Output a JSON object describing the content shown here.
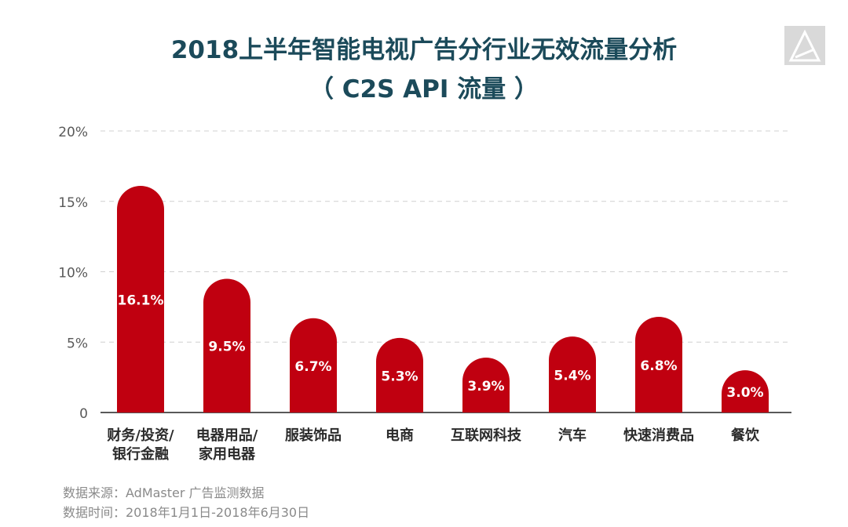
{
  "chart_data": {
    "type": "bar",
    "title": "2018上半年智能电视广告分行业无效流量分析",
    "subtitle": "（ C2S API 流量 ）",
    "categories": [
      [
        "财务/投资/",
        "银行金融"
      ],
      [
        "电器用品/",
        "家用电器"
      ],
      [
        "服装饰品"
      ],
      [
        "电商"
      ],
      [
        "互联网科技"
      ],
      [
        "汽车"
      ],
      [
        "快速消费品"
      ],
      [
        "餐饮"
      ]
    ],
    "values": [
      16.1,
      9.5,
      6.7,
      5.3,
      3.9,
      5.4,
      6.8,
      3.0
    ],
    "value_labels": [
      "16.1%",
      "9.5%",
      "6.7%",
      "5.3%",
      "3.9%",
      "5.4%",
      "6.8%",
      "3.0%"
    ],
    "ylim": [
      0,
      20
    ],
    "yticks": [
      0,
      5,
      10,
      15,
      20
    ],
    "ytick_labels": [
      "0",
      "5%",
      "10%",
      "15%",
      "20%"
    ],
    "grid": true,
    "bar_color": "#c00010",
    "xlabel": "",
    "ylabel": ""
  },
  "footer": {
    "source": "数据来源：AdMaster 广告监测数据",
    "period": "数据时间：2018年1月1日-2018年6月30日"
  }
}
